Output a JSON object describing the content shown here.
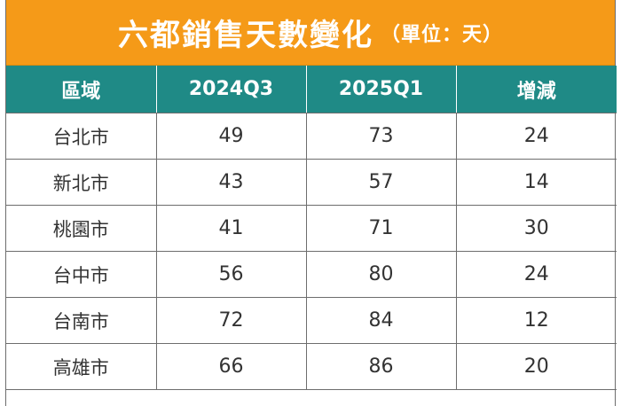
{
  "title": {
    "main": "六都銷售天數變化",
    "unit": "（單位：天）"
  },
  "colors": {
    "title_background": "#f59a18",
    "header_background": "#1f8a86",
    "header_text": "#ffffff",
    "cell_text": "#333333"
  },
  "table": {
    "headers": [
      "區域",
      "2024Q3",
      "2025Q1",
      "增減"
    ],
    "rows": [
      [
        "台北市",
        "49",
        "73",
        "24"
      ],
      [
        "新北市",
        "43",
        "57",
        "14"
      ],
      [
        "桃園市",
        "41",
        "71",
        "30"
      ],
      [
        "台中市",
        "56",
        "80",
        "24"
      ],
      [
        "台南市",
        "72",
        "84",
        "12"
      ],
      [
        "高雄市",
        "66",
        "86",
        "20"
      ]
    ]
  }
}
